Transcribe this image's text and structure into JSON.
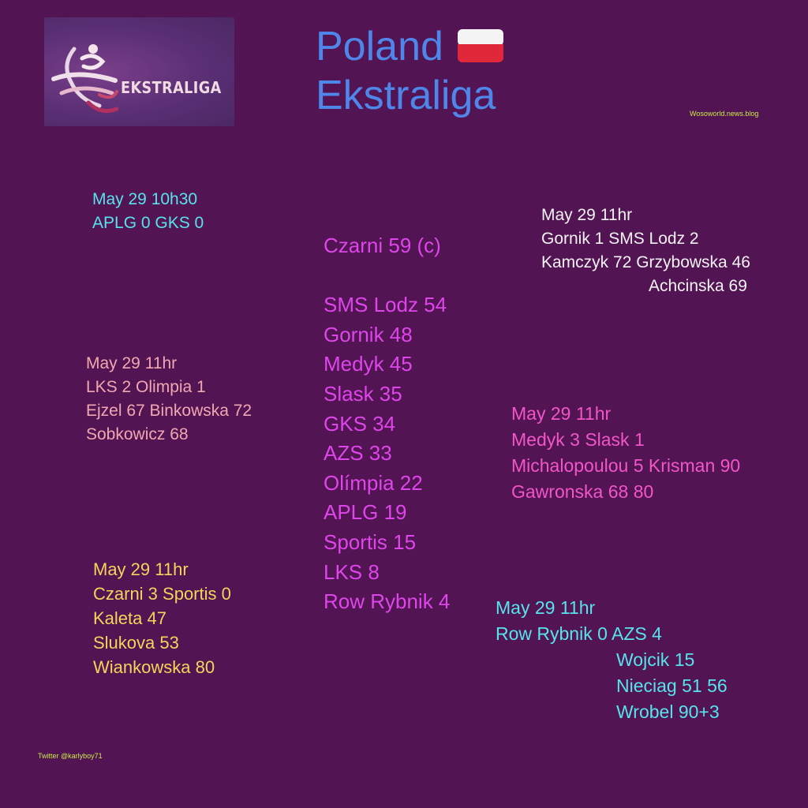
{
  "header": {
    "title_line1": "Poland",
    "title_line2": "Ekstraliga",
    "flag": "poland-flag"
  },
  "logo": {
    "text": "EKSTRALIGA"
  },
  "watermark": "Wosoworld.news.blog",
  "twitter": "Twitter @karlyboy71",
  "standings": [
    "Czarni 59 (c)",
    "SMS Lodz 54",
    "Gornik 48",
    "Medyk 45",
    "Slask 35",
    "GKS 34",
    "AZS 33",
    "Olímpia 22",
    "APLG 19",
    "Sportis 15",
    "LKS 8",
    "Row Rybnik 4"
  ],
  "matches": {
    "aplg_gks": [
      "May 29 10h30",
      "APLG 0 GKS 0"
    ],
    "gornik_sms": [
      "May 29 11hr",
      "Gornik 1 SMS Lodz 2",
      "Kamczyk 72 Grzybowska 46",
      "Achcinska 69"
    ],
    "lks_olimpia": [
      "May 29 11hr",
      "LKS 2 Olimpia 1",
      "Ejzel 67 Binkowska 72",
      "Sobkowicz 68"
    ],
    "medyk_slask": [
      "May 29 11hr",
      "Medyk 3 Slask 1",
      "Michalopoulou 5 Krisman 90",
      "Gawronska 68 80"
    ],
    "czarni_sportis": [
      "May 29 11hr",
      "Czarni 3 Sportis 0",
      "Kaleta 47",
      "Slukova 53",
      "Wiankowska 80"
    ],
    "row_azs": [
      "May 29 11hr",
      "Row Rybnik 0 AZS 4",
      "Wojcik 15",
      "Nieciag 51 56",
      "Wrobel 90+3"
    ]
  },
  "colors": {
    "background": "#531453",
    "title": "#4f86ea",
    "standings": "#de45ea",
    "cyan": "#57e3ec",
    "white": "#f2f2f2",
    "salmon": "#f0a8b0",
    "pink": "#f255c8",
    "yellow": "#f6d35a",
    "watermark": "#c8ea4a"
  }
}
